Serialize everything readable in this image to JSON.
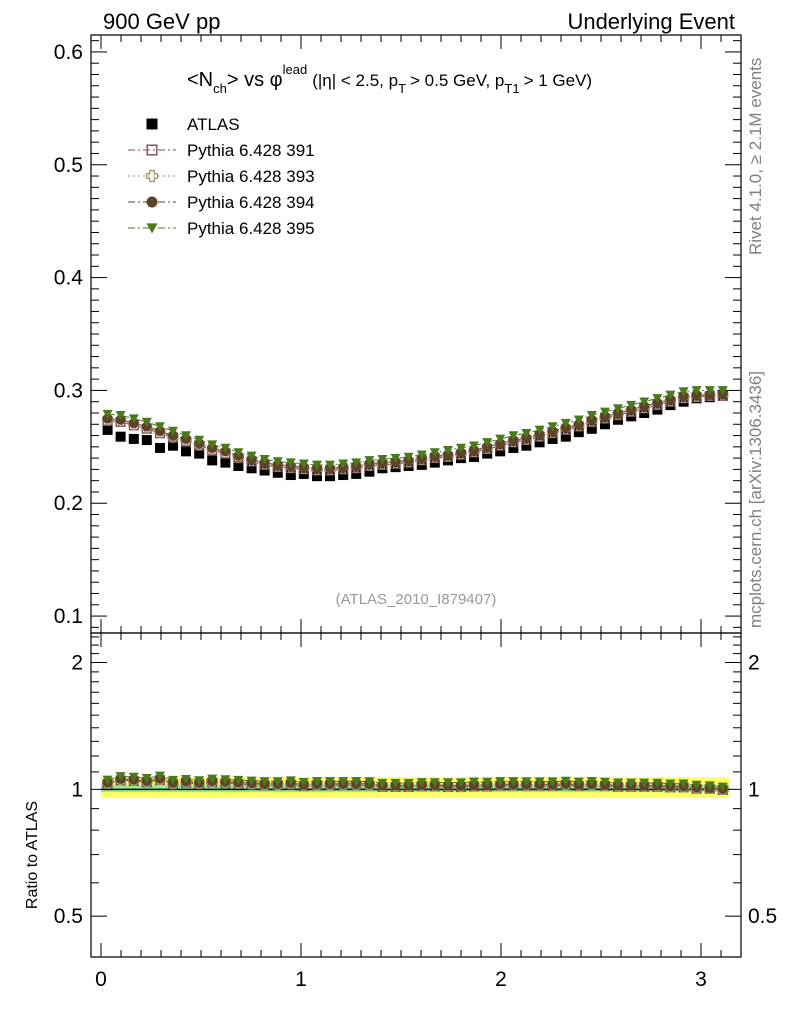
{
  "header": {
    "left": "900 GeV pp",
    "right": "Underlying Event"
  },
  "side_labels": {
    "rivet": "Rivet 4.1.0, ≥ 2.1M events",
    "mcplots": "mcplots.cern.ch [arXiv:1306.3436]"
  },
  "reference": "(ATLAS_2010_I879407)",
  "title": {
    "n": "<N",
    "n_sub": "ch",
    "vs": "> vs φ",
    "lead_sup": "lead",
    "p1": "(|η| < 2.5, p",
    "sub_t": "T",
    "p2": "> 0.5 GeV, p",
    "sub_t1": "T1",
    "p3": "> 1 GeV)"
  },
  "colors": {
    "atlas": "#000000",
    "py391": "#7b4a5a",
    "py393": "#a0946e",
    "py394": "#5e4229",
    "py395": "#4a7a1c",
    "band_inner": "#90ee90",
    "band_outer": "#ffff66"
  },
  "chart_data": {
    "type": "scatter",
    "title": "<Nch> vs φlead (|η| < 2.5, pT > 0.5 GeV, pT1 > 1 GeV)",
    "xlabel": "",
    "ylabel": "",
    "xlim": [
      -0.05,
      3.2
    ],
    "ylim": [
      0.085,
      0.615
    ],
    "yticks": [
      "0.1",
      "0.2",
      "0.3",
      "0.4",
      "0.5",
      "0.6"
    ],
    "xticks": [
      "0",
      "1",
      "2",
      "3"
    ],
    "x": [
      0.033,
      0.098,
      0.164,
      0.229,
      0.295,
      0.36,
      0.425,
      0.491,
      0.556,
      0.622,
      0.687,
      0.753,
      0.818,
      0.884,
      0.949,
      1.014,
      1.08,
      1.145,
      1.211,
      1.276,
      1.342,
      1.407,
      1.473,
      1.538,
      1.604,
      1.669,
      1.735,
      1.8,
      1.865,
      1.931,
      1.996,
      2.062,
      2.127,
      2.193,
      2.258,
      2.324,
      2.389,
      2.454,
      2.52,
      2.585,
      2.651,
      2.716,
      2.782,
      2.847,
      2.913,
      2.978,
      3.044,
      3.109
    ],
    "series": [
      {
        "name": "ATLAS",
        "marker": "square-filled",
        "line": "none",
        "values": [
          0.265,
          0.259,
          0.257,
          0.256,
          0.249,
          0.251,
          0.246,
          0.244,
          0.238,
          0.236,
          0.233,
          0.231,
          0.229,
          0.227,
          0.225,
          0.226,
          0.224,
          0.224,
          0.225,
          0.226,
          0.228,
          0.231,
          0.232,
          0.233,
          0.234,
          0.236,
          0.238,
          0.24,
          0.241,
          0.244,
          0.246,
          0.249,
          0.251,
          0.254,
          0.257,
          0.259,
          0.263,
          0.266,
          0.27,
          0.274,
          0.277,
          0.28,
          0.283,
          0.287,
          0.29,
          0.293,
          0.294,
          0.296
        ]
      },
      {
        "name": "Pythia 6.428 391",
        "marker": "square-open",
        "line": "dash-dot",
        "values": [
          0.273,
          0.272,
          0.269,
          0.266,
          0.262,
          0.258,
          0.255,
          0.251,
          0.247,
          0.244,
          0.24,
          0.237,
          0.234,
          0.232,
          0.231,
          0.23,
          0.229,
          0.229,
          0.23,
          0.231,
          0.233,
          0.234,
          0.235,
          0.236,
          0.238,
          0.24,
          0.241,
          0.243,
          0.245,
          0.248,
          0.251,
          0.254,
          0.256,
          0.259,
          0.262,
          0.265,
          0.268,
          0.272,
          0.275,
          0.278,
          0.281,
          0.284,
          0.287,
          0.29,
          0.293,
          0.294,
          0.295,
          0.295
        ]
      },
      {
        "name": "Pythia 6.428 393",
        "marker": "cross-open",
        "line": "dotted",
        "values": [
          0.274,
          0.273,
          0.27,
          0.267,
          0.263,
          0.259,
          0.256,
          0.252,
          0.248,
          0.245,
          0.241,
          0.238,
          0.235,
          0.233,
          0.232,
          0.231,
          0.23,
          0.23,
          0.231,
          0.232,
          0.234,
          0.235,
          0.236,
          0.237,
          0.239,
          0.241,
          0.242,
          0.244,
          0.246,
          0.249,
          0.252,
          0.255,
          0.257,
          0.26,
          0.263,
          0.266,
          0.269,
          0.273,
          0.276,
          0.279,
          0.282,
          0.285,
          0.288,
          0.291,
          0.294,
          0.295,
          0.296,
          0.296
        ]
      },
      {
        "name": "Pythia 6.428 394",
        "marker": "circle-filled",
        "line": "dash-dot",
        "values": [
          0.275,
          0.274,
          0.271,
          0.268,
          0.264,
          0.26,
          0.257,
          0.253,
          0.249,
          0.246,
          0.242,
          0.239,
          0.236,
          0.234,
          0.233,
          0.232,
          0.231,
          0.231,
          0.232,
          0.233,
          0.235,
          0.236,
          0.237,
          0.238,
          0.24,
          0.242,
          0.243,
          0.245,
          0.247,
          0.25,
          0.253,
          0.256,
          0.258,
          0.261,
          0.264,
          0.267,
          0.27,
          0.274,
          0.277,
          0.28,
          0.283,
          0.286,
          0.289,
          0.292,
          0.295,
          0.296,
          0.296,
          0.297
        ]
      },
      {
        "name": "Pythia 6.428 395",
        "marker": "triangle-down-filled",
        "line": "dash-dot",
        "values": [
          0.279,
          0.278,
          0.275,
          0.272,
          0.268,
          0.264,
          0.26,
          0.256,
          0.252,
          0.249,
          0.245,
          0.242,
          0.239,
          0.237,
          0.236,
          0.235,
          0.234,
          0.234,
          0.235,
          0.236,
          0.238,
          0.239,
          0.24,
          0.241,
          0.243,
          0.245,
          0.247,
          0.249,
          0.251,
          0.254,
          0.257,
          0.26,
          0.262,
          0.265,
          0.268,
          0.271,
          0.274,
          0.278,
          0.281,
          0.284,
          0.287,
          0.29,
          0.293,
          0.296,
          0.299,
          0.3,
          0.3,
          0.3
        ]
      }
    ],
    "ratio": {
      "ylabel": "Ratio to ATLAS",
      "ylim": [
        0.4,
        2.35
      ],
      "yticks": [
        "0.5",
        "1",
        "2"
      ],
      "band_inner": [
        0.985,
        1.025
      ],
      "band_outer": [
        0.955,
        1.07
      ]
    }
  }
}
